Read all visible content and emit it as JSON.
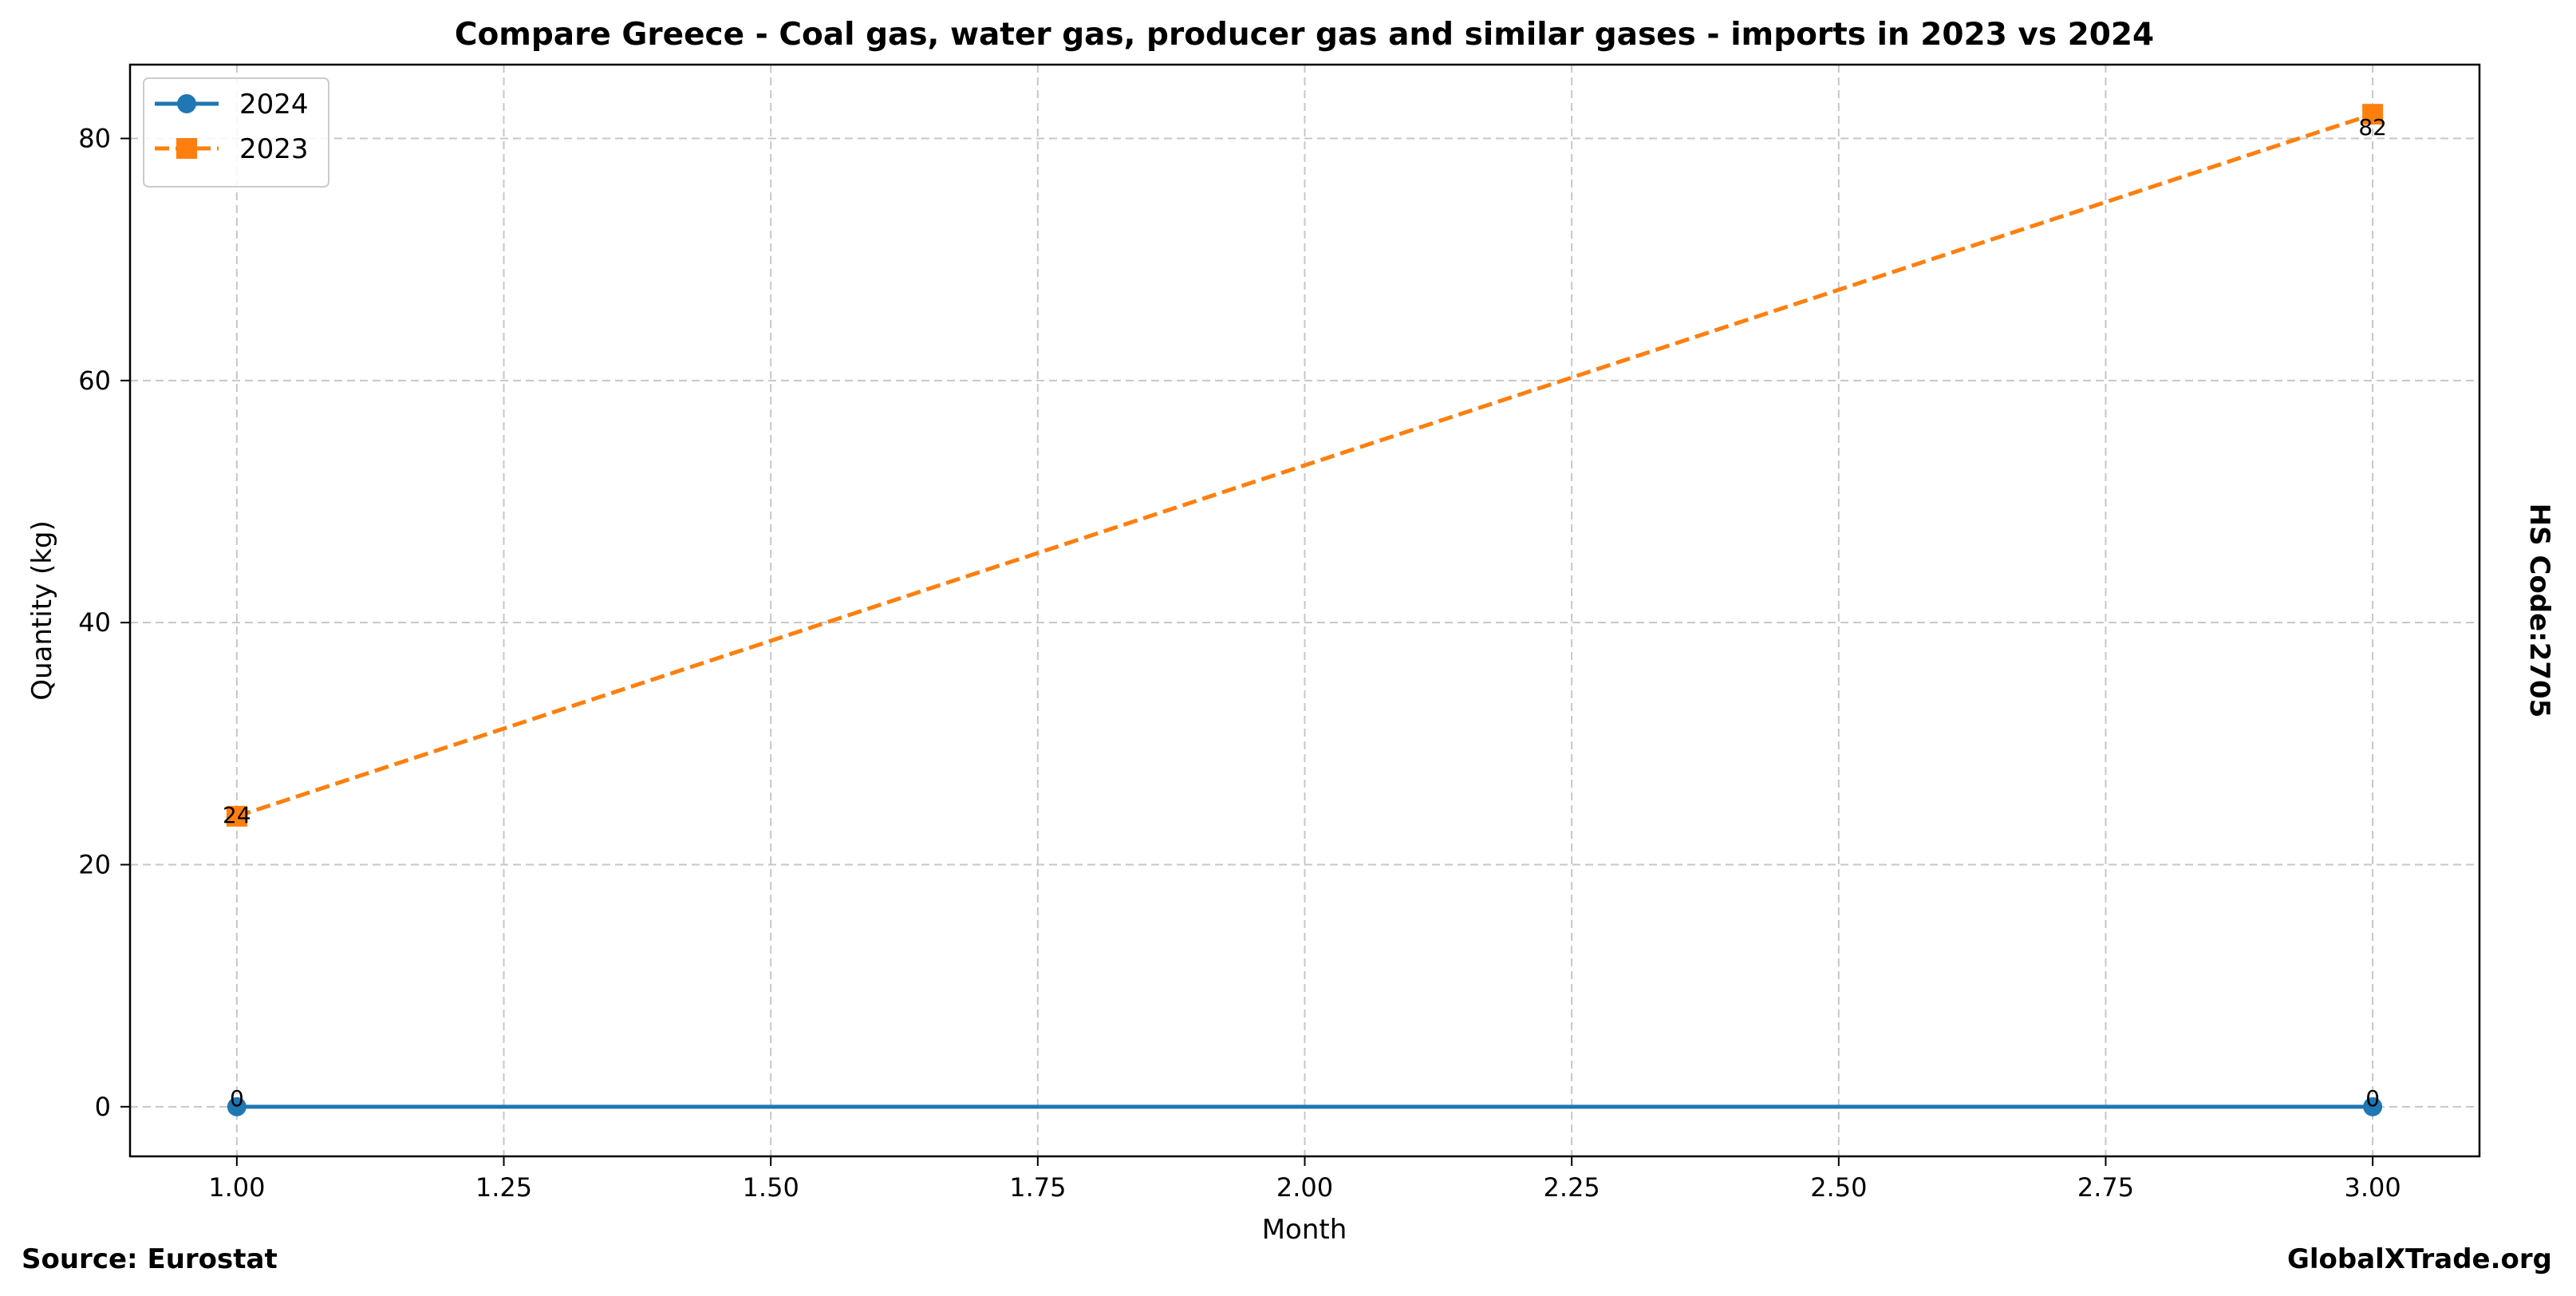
{
  "chart_data": {
    "type": "line",
    "title": "Compare Greece - Coal gas, water gas, producer gas and similar gases - imports in 2023 vs 2024",
    "xlabel": "Month",
    "ylabel": "Quantity (kg)",
    "xlim": [
      0.9,
      3.1
    ],
    "ylim": [
      -4.1,
      86.1
    ],
    "x_ticks": [
      1.0,
      1.25,
      1.5,
      1.75,
      2.0,
      2.25,
      2.5,
      2.75,
      3.0
    ],
    "x_tick_labels": [
      "1.00",
      "1.25",
      "1.50",
      "1.75",
      "2.00",
      "2.25",
      "2.50",
      "2.75",
      "3.00"
    ],
    "y_ticks": [
      0,
      20,
      40,
      60,
      80
    ],
    "y_tick_labels": [
      "0",
      "20",
      "40",
      "60",
      "80"
    ],
    "grid": true,
    "legend_position": "top-left",
    "series": [
      {
        "name": "2024",
        "x": [
          1,
          3
        ],
        "values": [
          0,
          0
        ],
        "labels": [
          "0",
          "0"
        ],
        "color": "#1f77b4",
        "marker": "circle",
        "line_style": "solid"
      },
      {
        "name": "2023",
        "x": [
          1,
          3
        ],
        "values": [
          24,
          82
        ],
        "labels": [
          "24",
          "82"
        ],
        "color": "#ff7f0e",
        "marker": "square",
        "line_style": "dashed"
      }
    ],
    "side_annotation": "HS Code:2705",
    "source_note": "Source: Eurostat",
    "watermark": "GlobalXTrade.org"
  }
}
